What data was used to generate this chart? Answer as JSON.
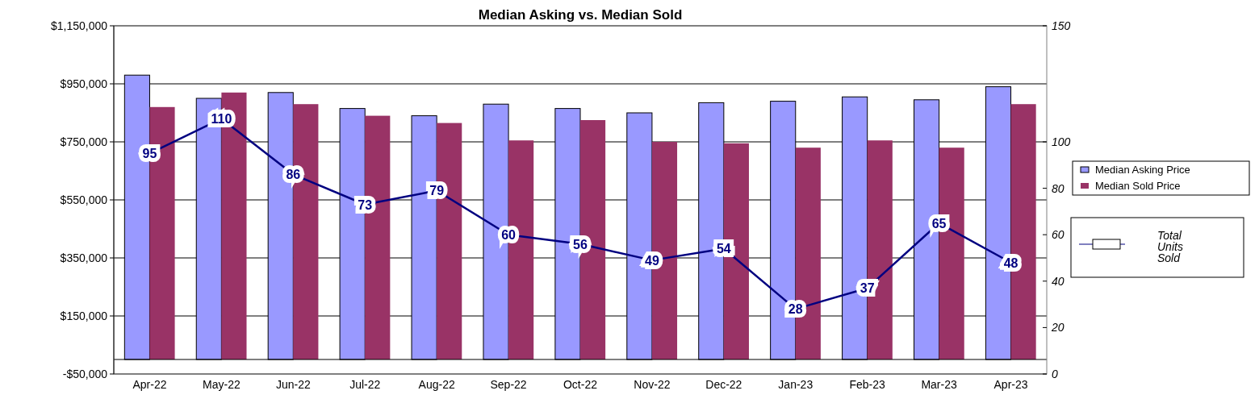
{
  "chart_data": {
    "type": "bar",
    "title": "Median Asking vs. Median Sold",
    "categories": [
      "Apr-22",
      "May-22",
      "Jun-22",
      "Jul-22",
      "Aug-22",
      "Sep-22",
      "Oct-22",
      "Nov-22",
      "Dec-22",
      "Jan-23",
      "Feb-23",
      "Mar-23",
      "Apr-23"
    ],
    "series": [
      {
        "name": "Median Asking Price",
        "color": "#9999ff",
        "values": [
          980000,
          900000,
          920000,
          865000,
          840000,
          880000,
          865000,
          850000,
          885000,
          890000,
          905000,
          895000,
          940000
        ]
      },
      {
        "name": "Median Sold Price",
        "color": "#993366",
        "values": [
          870000,
          920000,
          880000,
          840000,
          815000,
          755000,
          825000,
          750000,
          745000,
          730000,
          755000,
          730000,
          880000
        ]
      },
      {
        "name": "Total Units Sold",
        "type": "line",
        "axis": "y2",
        "color": "#000080",
        "data_labels": true,
        "values": [
          95,
          110,
          86,
          73,
          79,
          60,
          56,
          49,
          54,
          28,
          37,
          65,
          48
        ]
      }
    ],
    "ylim": [
      -50000,
      1150000
    ],
    "yticks": [
      {
        "value": -50000,
        "label": "-$50,000"
      },
      {
        "value": 150000,
        "label": "$150,000"
      },
      {
        "value": 350000,
        "label": "$350,000"
      },
      {
        "value": 550000,
        "label": "$550,000"
      },
      {
        "value": 750000,
        "label": "$750,000"
      },
      {
        "value": 950000,
        "label": "$950,000"
      },
      {
        "value": 1150000,
        "label": "$1,150,000"
      }
    ],
    "y2lim": [
      0,
      150
    ],
    "y2ticks": [
      0,
      20,
      40,
      60,
      80,
      100,
      150
    ],
    "grid": "y",
    "legend": "right"
  }
}
